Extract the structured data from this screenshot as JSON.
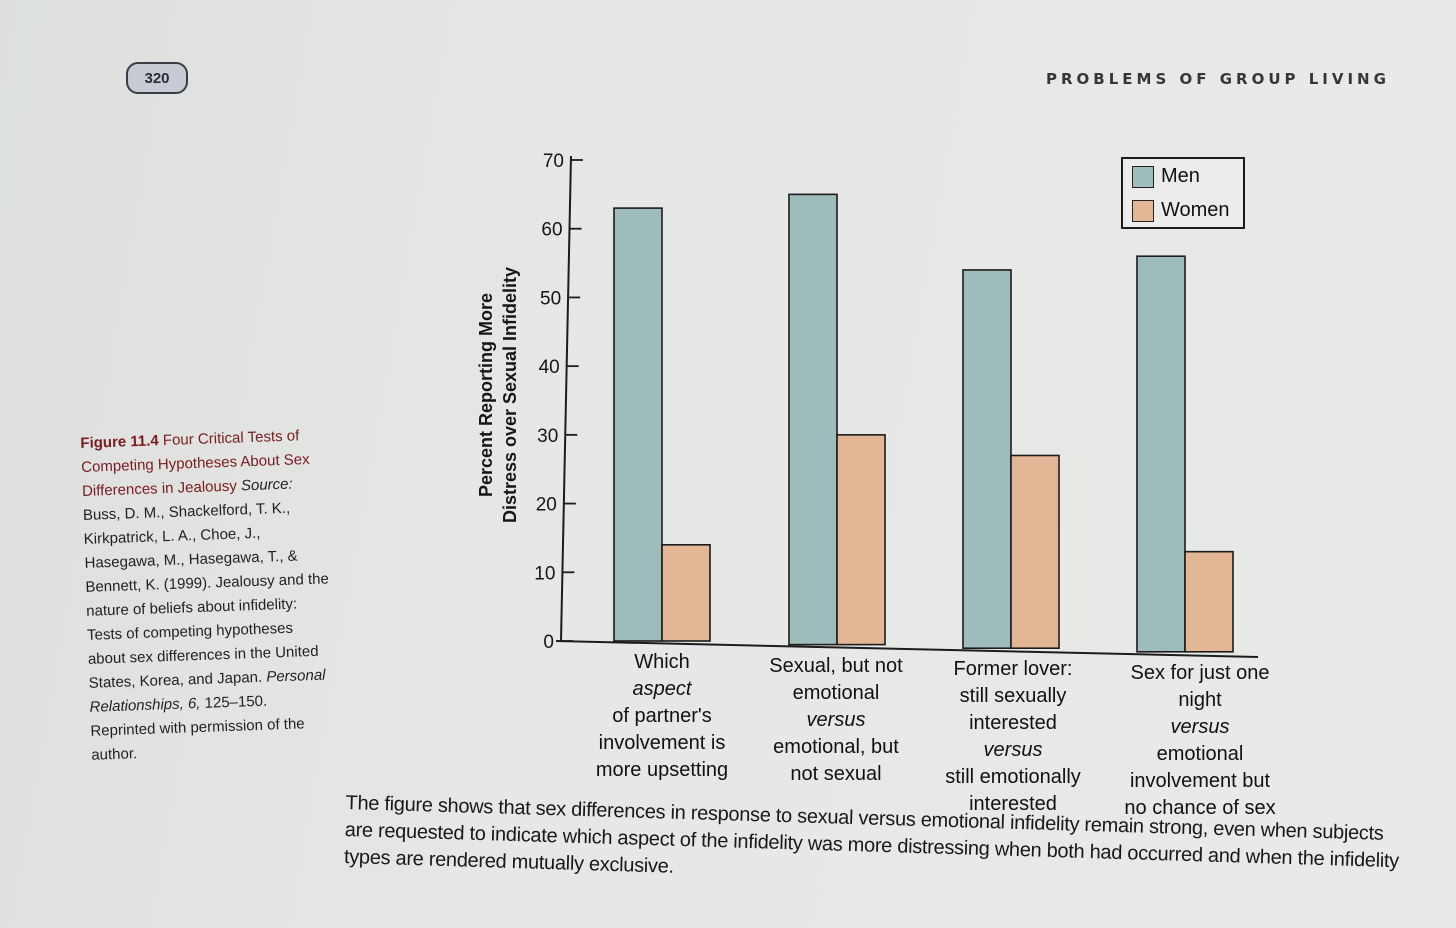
{
  "page": {
    "number": "320",
    "running_head": "PROBLEMS OF GROUP LIVING"
  },
  "figure_caption": {
    "label": "Figure 11.4",
    "title": "Four Critical Tests of Competing Hypotheses About Sex Differences in Jealousy",
    "source_label": "Source:",
    "source_text_1": "Buss, D. M., Shackelford, T. K., Kirkpatrick, L. A., Choe, J., Hasegawa, M., Hasegawa, T., & Bennett, K. (1999). Jealousy and the nature of beliefs about infidelity: Tests of competing hypotheses about sex differences in the United States, Korea, and Japan.",
    "journal": "Personal Relationships, 6,",
    "source_text_2": "125–150. Reprinted with permission of the author."
  },
  "caption_paragraph": "The figure shows that sex differences in response to sexual versus emotional infidelity remain strong, even when subjects are requested to indicate which aspect of the infidelity was more distressing when both had occurred and when the infidelity types are rendered mutually exclusive.",
  "chart_data": {
    "type": "bar",
    "title": "",
    "ylabel_lines": [
      "Percent Reporting More",
      "Distress over Sexual Infidelity"
    ],
    "ylim": [
      0,
      70
    ],
    "yticks": [
      0,
      10,
      20,
      30,
      40,
      50,
      60,
      70
    ],
    "ytick_labels": [
      "0",
      "10",
      "20",
      "30",
      "40",
      "50",
      "60",
      "70"
    ],
    "grid": false,
    "legend_position": "top-right",
    "categories": [
      {
        "lines": [
          [
            {
              "t": "Which "
            },
            {
              "t": "aspect",
              "i": true
            }
          ],
          [
            {
              "t": "of partner's"
            }
          ],
          [
            {
              "t": "involvement is"
            }
          ],
          [
            {
              "t": "more upsetting"
            }
          ]
        ]
      },
      {
        "lines": [
          [
            {
              "t": "Sexual, but not"
            }
          ],
          [
            {
              "t": "emotional "
            },
            {
              "t": "versus",
              "i": true
            }
          ],
          [
            {
              "t": "emotional, but"
            }
          ],
          [
            {
              "t": "not sexual"
            }
          ]
        ]
      },
      {
        "lines": [
          [
            {
              "t": "Former lover:"
            }
          ],
          [
            {
              "t": "still sexually"
            }
          ],
          [
            {
              "t": "interested "
            },
            {
              "t": "versus",
              "i": true
            }
          ],
          [
            {
              "t": "still emotionally"
            }
          ],
          [
            {
              "t": "interested"
            }
          ]
        ]
      },
      {
        "lines": [
          [
            {
              "t": "Sex for just one"
            }
          ],
          [
            {
              "t": "night "
            },
            {
              "t": "versus",
              "i": true
            }
          ],
          [
            {
              "t": "emotional"
            }
          ],
          [
            {
              "t": "involvement but"
            }
          ],
          [
            {
              "t": "no chance of sex"
            }
          ]
        ]
      }
    ],
    "series": [
      {
        "name": "Men",
        "color": "#9fbcbd",
        "values": [
          63,
          65,
          54,
          56
        ]
      },
      {
        "name": "Women",
        "color": "#e3b796",
        "values": [
          14,
          30,
          27,
          13
        ]
      }
    ]
  }
}
